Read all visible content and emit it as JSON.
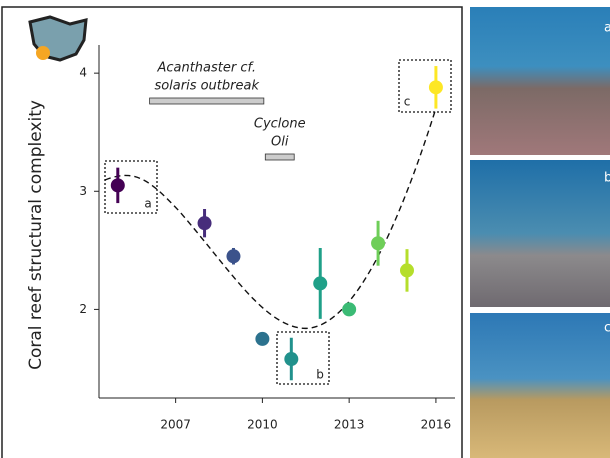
{
  "chart_data": {
    "type": "scatter",
    "y_label": "Coral reef structural complexity",
    "x": [
      2005,
      2008,
      2009,
      2010,
      2011,
      2012,
      2013,
      2014,
      2015,
      2016
    ],
    "values": [
      3.05,
      2.73,
      2.45,
      1.75,
      1.58,
      2.22,
      2.0,
      2.56,
      2.33,
      3.88
    ],
    "errors": [
      0.15,
      0.12,
      0.07,
      null,
      0.18,
      0.3,
      0.05,
      0.19,
      0.18,
      0.18
    ],
    "colors": [
      "#440154",
      "#472d7b",
      "#3b528b",
      "#2c728e",
      "#21918c",
      "#1fa088",
      "#3bbb75",
      "#6ece58",
      "#b5de2b",
      "#fde725"
    ],
    "xlim": [
      2004.35,
      2016.66
    ],
    "ylim": [
      1.25,
      4.56
    ],
    "xticks": [
      2007,
      2010,
      2013,
      2016
    ],
    "yticks": [
      2,
      3,
      4
    ],
    "events": [
      {
        "lines": [
          "Acanthaster cf.",
          "solaris outbreak"
        ],
        "start": 2006.1,
        "end": 2010.05
      },
      {
        "lines": [
          "Cyclone",
          "Oli"
        ],
        "start": 2010.1,
        "end": 2011.1
      }
    ],
    "point_boxes": [
      "a",
      "b",
      "c"
    ],
    "photo_panels": [
      "a",
      "b",
      "c"
    ]
  }
}
